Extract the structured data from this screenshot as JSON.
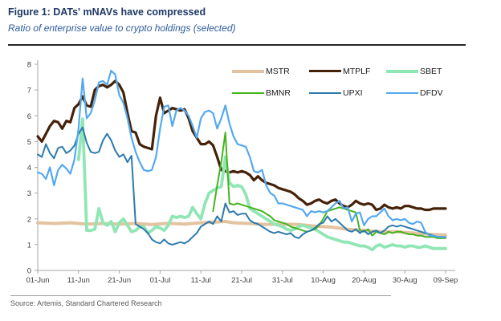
{
  "header": {
    "title": "Figure 1: DATs' mNAVs have compressed",
    "subtitle": "Ratio of enterprise value to crypto holdings (selected)"
  },
  "source": "Source: Artemis, Standard Chartered Research",
  "colors": {
    "title": "#1F3864",
    "subtitle": "#2E5C9E",
    "header_rule": "#262626",
    "axis_line": "#A6A6A6",
    "tick_label": "#404040",
    "source_text": "#595959",
    "background": "#FFFFFF"
  },
  "chart_data": {
    "type": "line",
    "title": "Figure 1: DATs' mNAVs have compressed",
    "subtitle": "Ratio of enterprise value to crypto holdings (selected)",
    "grid": false,
    "legend_position": "top-inside",
    "x_axis": {
      "unit": "date (days after 01-Jun)",
      "tick_labels": [
        "01-Jun",
        "11-Jun",
        "21-Jun",
        "01-Jul",
        "11-Jul",
        "21-Jul",
        "31-Jul",
        "10-Aug",
        "20-Aug",
        "30-Aug",
        "09-Sep"
      ],
      "tick_days": [
        0,
        10,
        20,
        30,
        40,
        50,
        60,
        70,
        80,
        90,
        100
      ],
      "range_days": [
        0,
        100
      ]
    },
    "y_axis": {
      "min": 0,
      "max": 8,
      "step": 1,
      "tick_labels": [
        "0",
        "1",
        "2",
        "3",
        "4",
        "5",
        "6",
        "7",
        "8"
      ]
    },
    "series": [
      {
        "name": "MSTR",
        "color": "#E3C3A0",
        "width": 4,
        "x": [
          0,
          4,
          8,
          12,
          16,
          20,
          24,
          28,
          32,
          36,
          40,
          44,
          46,
          48,
          52,
          56,
          60,
          64,
          68,
          72,
          76,
          80,
          84,
          88,
          92,
          96,
          100
        ],
        "values": [
          1.85,
          1.82,
          1.85,
          1.8,
          1.82,
          1.8,
          1.82,
          1.78,
          1.83,
          1.8,
          1.85,
          1.88,
          1.9,
          1.85,
          1.82,
          1.78,
          1.8,
          1.78,
          1.72,
          1.68,
          1.6,
          1.55,
          1.5,
          1.5,
          1.45,
          1.4,
          1.38
        ]
      },
      {
        "name": "MTPLF",
        "color": "#452108",
        "width": 3.2,
        "x0": 0,
        "values": [
          5.2,
          5.0,
          5.3,
          5.6,
          5.8,
          5.75,
          5.5,
          5.8,
          5.75,
          6.3,
          6.45,
          6.75,
          6.4,
          6.35,
          7.0,
          7.15,
          7.2,
          7.1,
          7.2,
          7.35,
          7.2,
          6.9,
          6.1,
          5.4,
          5.35,
          4.9,
          4.8,
          4.75,
          4.7,
          6.0,
          6.7,
          6.1,
          6.2,
          6.3,
          6.25,
          6.2,
          6.25,
          5.9,
          5.4,
          5.15,
          4.9,
          4.9,
          5.0,
          4.85,
          4.4,
          3.9,
          3.85,
          3.8,
          3.85,
          3.8,
          3.85,
          3.8,
          3.7,
          3.5,
          3.65,
          3.5,
          3.4,
          3.35,
          3.3,
          3.2,
          3.15,
          3.1,
          3.05,
          2.95,
          2.8,
          2.7,
          2.55,
          2.6,
          2.7,
          2.75,
          2.65,
          2.6,
          2.7,
          2.75,
          2.6,
          2.5,
          2.45,
          2.55,
          2.7,
          2.6,
          2.55,
          2.6,
          2.55,
          2.35,
          2.4,
          2.55,
          2.45,
          2.4,
          2.45,
          2.4,
          2.5,
          2.5,
          2.45,
          2.4,
          2.4,
          2.35,
          2.35,
          2.4,
          2.4,
          2.4,
          2.4
        ]
      },
      {
        "name": "SBET",
        "color": "#90E6B4",
        "width": 3.8,
        "x0": 10,
        "values": [
          4.3,
          5.88,
          1.55,
          1.55,
          1.6,
          2.4,
          1.85,
          1.75,
          1.9,
          1.5,
          1.85,
          2.0,
          1.75,
          1.5,
          1.55,
          1.7,
          1.7,
          1.45,
          1.55,
          1.7,
          1.65,
          1.55,
          1.75,
          2.1,
          2.05,
          2.1,
          2.05,
          2.1,
          2.45,
          2.2,
          2.0,
          2.6,
          3.0,
          3.1,
          3.2,
          3.25,
          4.4,
          3.4,
          3.25,
          3.3,
          3.25,
          2.95,
          2.4,
          2.3,
          2.2,
          2.1,
          2.0,
          1.9,
          1.8,
          1.75,
          1.7,
          1.6,
          1.55,
          1.6,
          1.7,
          1.75,
          1.7,
          1.65,
          1.6,
          1.5,
          1.4,
          1.3,
          1.25,
          1.2,
          1.15,
          1.1,
          1.1,
          1.05,
          1.0,
          0.95,
          0.95,
          0.9,
          0.8,
          0.95,
          1.0,
          0.9,
          0.95,
          1.0,
          0.95,
          0.95,
          0.9,
          0.95,
          0.95,
          0.9,
          0.9,
          0.95,
          0.9,
          0.85,
          0.85,
          0.85,
          0.85
        ]
      },
      {
        "name": "BMNR",
        "color": "#45B41F",
        "width": 2,
        "x0": 43,
        "values": [
          2.3,
          3.3,
          4.2,
          5.35,
          2.6,
          2.55,
          2.6,
          2.55,
          2.5,
          2.45,
          2.4,
          2.35,
          2.3,
          2.2,
          2.1,
          1.95,
          1.9,
          1.85,
          1.8,
          1.7,
          1.65,
          1.6,
          1.55,
          1.5,
          1.55,
          1.6,
          1.75,
          2.0,
          2.3,
          2.35,
          2.4,
          2.45,
          2.4,
          2.35,
          2.3,
          2.25,
          1.55,
          1.5,
          1.6,
          1.35,
          1.5,
          1.45,
          1.4,
          1.5,
          1.45,
          1.5,
          1.5,
          1.45,
          1.4,
          1.4,
          1.35,
          1.35,
          1.3,
          1.3,
          1.3,
          1.25,
          1.25,
          1.25
        ]
      },
      {
        "name": "UPXI",
        "color": "#2D7BAD",
        "width": 2,
        "x0": 0,
        "values": [
          4.5,
          4.4,
          4.9,
          4.55,
          4.35,
          4.75,
          4.8,
          4.55,
          4.65,
          4.85,
          5.3,
          5.55,
          4.95,
          4.6,
          4.55,
          4.6,
          5.05,
          5.3,
          5.05,
          4.65,
          4.4,
          4.5,
          4.2,
          4.45,
          1.8,
          1.7,
          1.6,
          1.45,
          1.2,
          1.1,
          1.05,
          1.2,
          1.05,
          1.0,
          1.05,
          1.1,
          1.05,
          1.15,
          1.3,
          1.45,
          1.7,
          1.8,
          1.9,
          1.8,
          2.1,
          1.9,
          2.6,
          2.25,
          2.3,
          2.15,
          2.2,
          2.2,
          1.95,
          1.85,
          1.8,
          1.7,
          1.6,
          1.5,
          1.45,
          1.5,
          1.45,
          1.4,
          1.45,
          1.3,
          1.25,
          1.4,
          1.5,
          1.55,
          1.65,
          1.8,
          1.85,
          2.1,
          1.9,
          2.0,
          1.85,
          1.7,
          1.55,
          1.5,
          1.6,
          1.45,
          1.55,
          1.4,
          1.5,
          1.55,
          1.45,
          1.55,
          1.7,
          1.75,
          1.7,
          1.75,
          1.7,
          1.65,
          1.6,
          1.55,
          1.5,
          1.45,
          1.4,
          1.35,
          1.3,
          1.3,
          1.28
        ]
      },
      {
        "name": "DFDV",
        "color": "#55A9F0",
        "width": 2.2,
        "x0": 0,
        "values": [
          3.8,
          3.75,
          3.55,
          4.0,
          3.3,
          3.9,
          4.1,
          3.95,
          3.75,
          4.3,
          5.5,
          7.45,
          5.9,
          6.1,
          6.6,
          7.3,
          7.35,
          7.2,
          7.75,
          7.6,
          6.8,
          6.5,
          5.9,
          5.15,
          4.6,
          4.2,
          3.9,
          3.85,
          3.9,
          4.4,
          5.5,
          6.35,
          6.4,
          5.6,
          6.2,
          6.3,
          6.2,
          6.0,
          5.6,
          5.15,
          5.9,
          6.15,
          6.2,
          6.1,
          5.5,
          5.9,
          6.4,
          5.7,
          5.2,
          4.9,
          4.85,
          4.8,
          4.4,
          3.85,
          3.8,
          3.9,
          3.3,
          3.0,
          2.9,
          2.6,
          2.6,
          2.55,
          2.5,
          2.45,
          2.4,
          2.35,
          2.1,
          2.3,
          2.25,
          2.3,
          2.25,
          2.3,
          2.45,
          2.6,
          2.7,
          2.4,
          2.45,
          1.9,
          2.2,
          2.25,
          1.75,
          2.0,
          2.1,
          2.1,
          2.25,
          2.4,
          2.1,
          1.95,
          2.0,
          1.95,
          2.0,
          1.85,
          1.8,
          1.9,
          1.85,
          1.5,
          1.35,
          1.35,
          1.3,
          1.3,
          1.3
        ]
      }
    ]
  }
}
